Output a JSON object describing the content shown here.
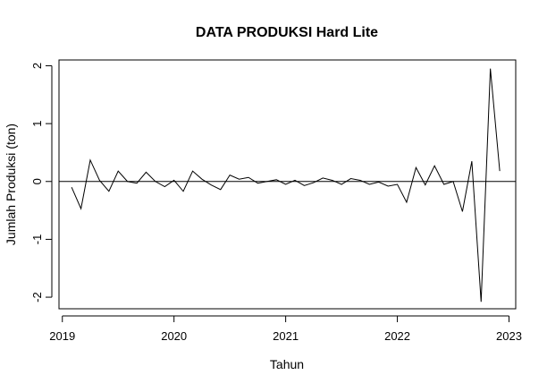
{
  "chart_data": {
    "type": "line",
    "title": "DATA PRODUKSI Hard Lite",
    "xlabel": "Tahun",
    "ylabel": "Jumlah Produksi (ton)",
    "xlim": [
      2018.97,
      2023.06
    ],
    "ylim": [
      -2.2,
      2.1
    ],
    "x_ticks": [
      2019,
      2020,
      2021,
      2022,
      2023
    ],
    "x_tick_labels": [
      "2019",
      "2020",
      "2021",
      "2022",
      "2023"
    ],
    "y_ticks": [
      -2,
      -1,
      0,
      1,
      2
    ],
    "y_tick_labels": [
      "-2",
      "-1",
      "0",
      "1",
      "2"
    ],
    "reference_line_y": 0,
    "grid": false,
    "line_color": "#000000",
    "series": [
      {
        "x": [
          2019.083,
          2019.167,
          2019.25,
          2019.333,
          2019.417,
          2019.5,
          2019.583,
          2019.667,
          2019.75,
          2019.833,
          2019.917,
          2020.0,
          2020.083,
          2020.167,
          2020.25,
          2020.333,
          2020.417,
          2020.5,
          2020.583,
          2020.667,
          2020.75,
          2020.833,
          2020.917,
          2021.0,
          2021.083,
          2021.167,
          2021.25,
          2021.333,
          2021.417,
          2021.5,
          2021.583,
          2021.667,
          2021.75,
          2021.833,
          2021.917,
          2022.0,
          2022.083,
          2022.167,
          2022.25,
          2022.333,
          2022.417,
          2022.5,
          2022.583,
          2022.667,
          2022.75,
          2022.833,
          2022.917
        ],
        "values": [
          -0.1,
          -0.47,
          0.37,
          0.02,
          -0.17,
          0.18,
          0.0,
          -0.03,
          0.16,
          0.0,
          -0.09,
          0.02,
          -0.17,
          0.18,
          0.04,
          -0.06,
          -0.14,
          0.11,
          0.04,
          0.07,
          -0.03,
          0.0,
          0.03,
          -0.05,
          0.02,
          -0.07,
          -0.02,
          0.06,
          0.02,
          -0.05,
          0.05,
          0.02,
          -0.05,
          -0.01,
          -0.08,
          -0.05,
          -0.36,
          0.24,
          -0.06,
          0.27,
          -0.05,
          0.0,
          -0.52,
          0.35,
          -2.08,
          1.95,
          0.18
        ]
      }
    ]
  }
}
